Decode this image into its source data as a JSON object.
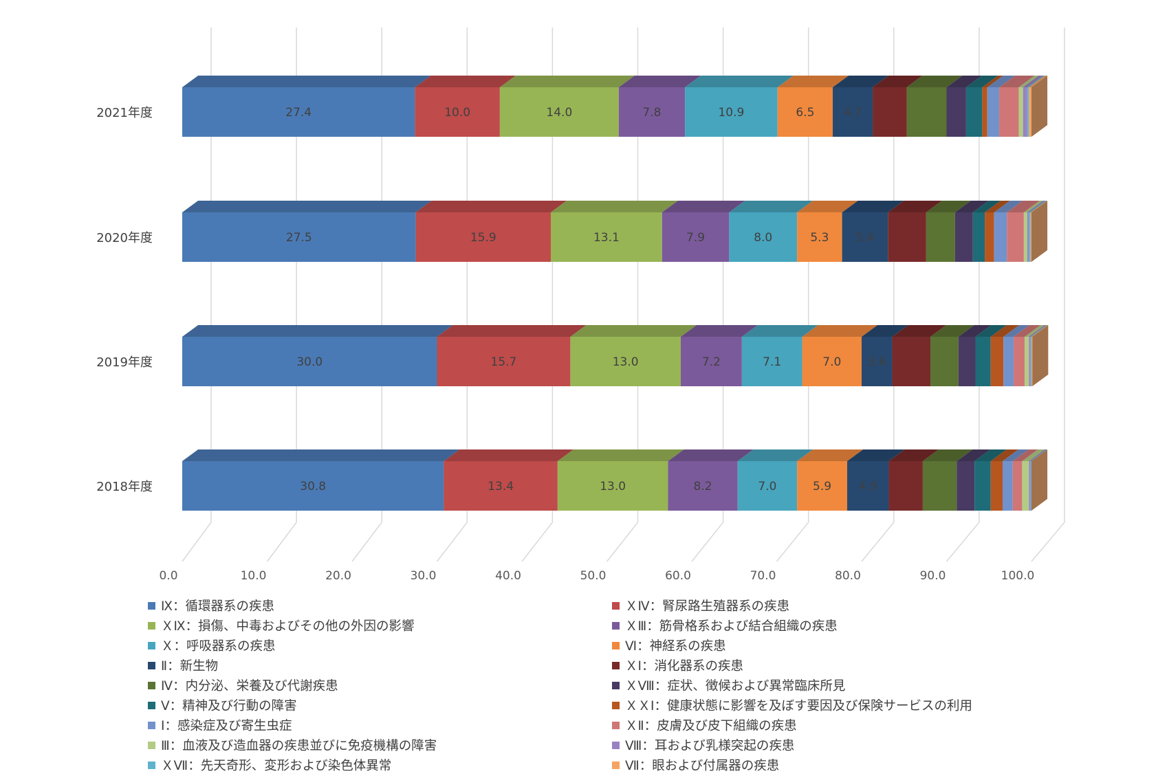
{
  "chart_data": {
    "type": "bar",
    "orientation": "horizontal",
    "stacked": true,
    "style": "3d",
    "categories": [
      "2021年度",
      "2020年度",
      "2019年度",
      "2018年度"
    ],
    "xlim": [
      0,
      100
    ],
    "xticks": [
      "0.0",
      "10.0",
      "20.0",
      "30.0",
      "40.0",
      "50.0",
      "60.0",
      "70.0",
      "80.0",
      "90.0",
      "100.0"
    ],
    "grid": true,
    "legend_position": "bottom",
    "series": [
      {
        "name": "Ⅸ：循環器系の疾患",
        "color": "#4a7ab5",
        "values": [
          27.4,
          27.5,
          30.0,
          30.8
        ],
        "labels": [
          "27.4",
          "27.5",
          "30.0",
          "30.8"
        ]
      },
      {
        "name": "ＸⅣ：腎尿路生殖器系の疾患",
        "color": "#bf4b4b",
        "values": [
          10.0,
          15.9,
          15.7,
          13.4
        ],
        "labels": [
          "10.0",
          "15.9",
          "15.7",
          "13.4"
        ]
      },
      {
        "name": "ＸⅨ：損傷、中毒およびその他の外因の影響",
        "color": "#98b555",
        "values": [
          14.0,
          13.1,
          13.0,
          13.0
        ],
        "labels": [
          "14.0",
          "13.1",
          "13.0",
          "13.0"
        ]
      },
      {
        "name": "ＸⅢ：筋骨格系および結合組織の疾患",
        "color": "#7b5a9b",
        "values": [
          7.8,
          7.9,
          7.2,
          8.2
        ],
        "labels": [
          "7.8",
          "7.9",
          "7.2",
          "8.2"
        ]
      },
      {
        "name": "Ｘ：呼吸器系の疾患",
        "color": "#47a5be",
        "values": [
          10.9,
          8.0,
          7.1,
          7.0
        ],
        "labels": [
          "10.9",
          "8.0",
          "7.1",
          "7.0"
        ]
      },
      {
        "name": "Ⅵ：神経系の疾患",
        "color": "#f0893d",
        "values": [
          6.5,
          5.3,
          7.0,
          5.9
        ],
        "labels": [
          "6.5",
          "5.3",
          "7.0",
          "5.9"
        ]
      },
      {
        "name": "Ⅱ：新生物",
        "color": "#274970",
        "values": [
          4.7,
          5.4,
          3.6,
          4.9
        ],
        "labels": [
          "4.7",
          "5.4",
          "3.6",
          "4.9"
        ]
      },
      {
        "name": "ＸⅠ：消化器系の疾患",
        "color": "#782a2a",
        "values": [
          4.0,
          4.5,
          4.5,
          4.0
        ],
        "labels": [
          "",
          "",
          "",
          ""
        ]
      },
      {
        "name": "Ⅳ：内分泌、栄養及び代謝疾患",
        "color": "#5b7333",
        "values": [
          4.7,
          3.4,
          3.3,
          4.0
        ],
        "labels": [
          "",
          "",
          "",
          ""
        ]
      },
      {
        "name": "ＸⅧ：症状、徴候および異常臨床所見",
        "color": "#483a62",
        "values": [
          2.3,
          2.1,
          2.0,
          2.1
        ],
        "labels": [
          "",
          "",
          "",
          ""
        ]
      },
      {
        "name": "Ⅴ：精神及び行動の障害",
        "color": "#1e6c78",
        "values": [
          1.9,
          1.4,
          1.8,
          1.9
        ],
        "labels": [
          "",
          "",
          "",
          ""
        ]
      },
      {
        "name": "ＸＸⅠ：健康状態に影響を及ぼす要因及び保険サービスの利用",
        "color": "#b8561f",
        "values": [
          0.6,
          1.1,
          1.5,
          1.4
        ],
        "labels": [
          "",
          "",
          "",
          ""
        ]
      },
      {
        "name": "Ⅰ：感染症及び寄生虫症",
        "color": "#7292cc",
        "values": [
          1.4,
          1.5,
          1.2,
          1.2
        ],
        "labels": [
          "",
          "",
          "",
          ""
        ]
      },
      {
        "name": "ＸⅡ：皮膚及び皮下組織の疾患",
        "color": "#d07676",
        "values": [
          2.3,
          2.0,
          1.3,
          1.1
        ],
        "labels": [
          "",
          "",
          "",
          ""
        ]
      },
      {
        "name": "Ⅲ：血液及び造血器の疾患並びに免疫機構の障害",
        "color": "#b3cc85",
        "values": [
          0.5,
          0.4,
          0.5,
          0.8
        ],
        "labels": [
          "",
          "",
          "",
          ""
        ]
      },
      {
        "name": "Ⅷ：耳および乳様突起の疾患",
        "color": "#9a82c1",
        "values": [
          0.5,
          0.2,
          0.2,
          0.2
        ],
        "labels": [
          "",
          "",
          "",
          ""
        ]
      },
      {
        "name": "ＸⅦ：先天奇形、変形および染色体異常",
        "color": "#5fb3cc",
        "values": [
          0.2,
          0.2,
          0.1,
          0.1
        ],
        "labels": [
          "",
          "",
          "",
          ""
        ]
      },
      {
        "name": "Ⅶ：眼および付属器の疾患",
        "color": "#f5a463",
        "values": [
          0.3,
          0.1,
          0.1,
          0.0
        ],
        "labels": [
          "",
          "",
          "",
          ""
        ]
      }
    ]
  }
}
